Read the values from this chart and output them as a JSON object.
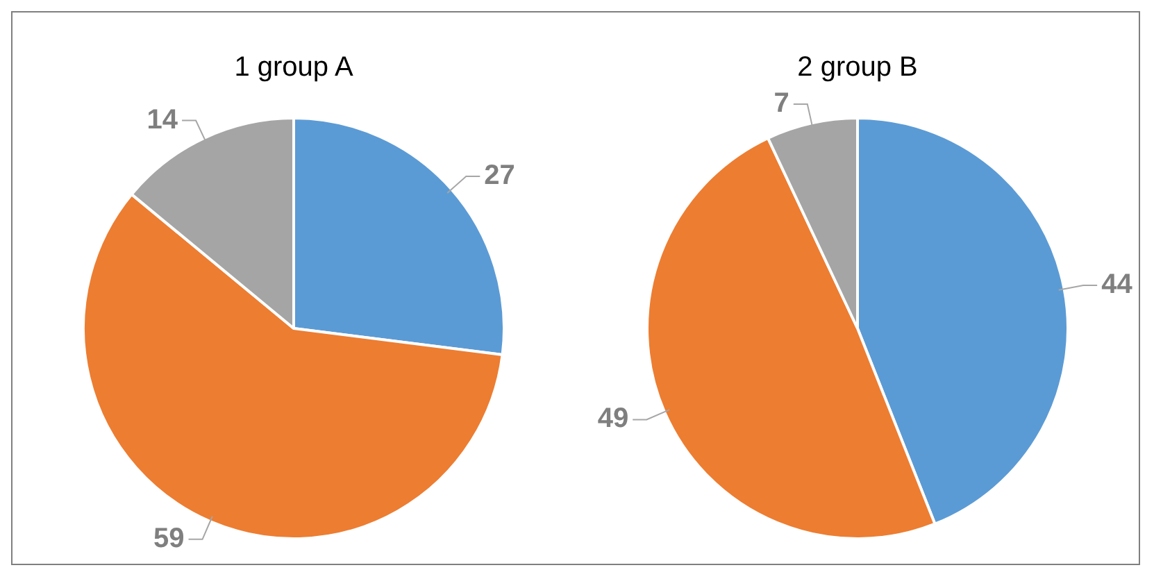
{
  "chart_data": [
    {
      "type": "pie",
      "title": "1 group A",
      "categories": [
        null,
        null,
        null
      ],
      "values": [
        27,
        59,
        14
      ],
      "colors": [
        "#5b9bd5",
        "#ed7d31",
        "#a5a5a5"
      ],
      "data_labels": true
    },
    {
      "type": "pie",
      "title": "2 group B",
      "categories": [
        null,
        null,
        null
      ],
      "values": [
        44,
        49,
        7
      ],
      "colors": [
        "#5b9bd5",
        "#ed7d31",
        "#a5a5a5"
      ],
      "data_labels": true
    }
  ]
}
